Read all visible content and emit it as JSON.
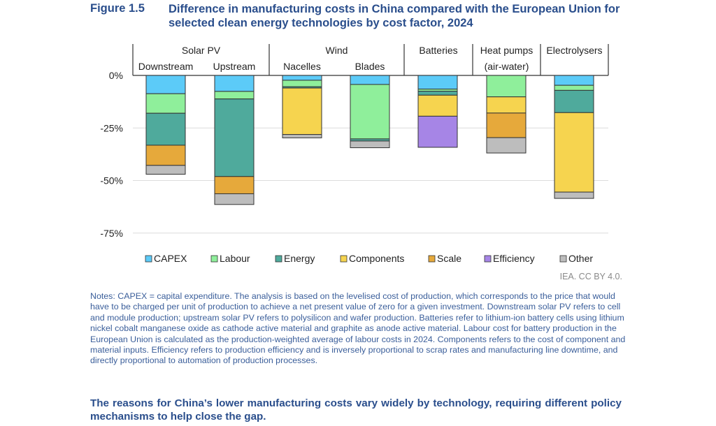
{
  "figure": {
    "label": "Figure 1.5",
    "title": "Difference in manufacturing costs in China compared with the European Union for selected clean energy technologies by cost factor, 2024"
  },
  "chart_data": {
    "type": "bar",
    "stacked": true,
    "title": "Difference in manufacturing costs in China compared with the European Union for selected clean energy technologies by cost factor, 2024",
    "xlabel": "",
    "ylabel": "",
    "ylim": [
      -75,
      0
    ],
    "yticks": [
      0,
      -25,
      -50,
      -75
    ],
    "ytick_labels": [
      "0%",
      "-25%",
      "-50%",
      "-75%"
    ],
    "grid": true,
    "legend_position": "bottom",
    "groups": [
      {
        "name": "Solar PV",
        "categories": [
          "Downstream",
          "Upstream"
        ]
      },
      {
        "name": "Wind",
        "categories": [
          "Nacelles",
          "Blades"
        ]
      },
      {
        "name": "Batteries",
        "categories": [
          ""
        ]
      },
      {
        "name": "Heat pumps (air-water)",
        "line1": "Heat pumps",
        "line2": "(air-water)",
        "categories": [
          ""
        ]
      },
      {
        "name": "Electrolysers",
        "categories": [
          ""
        ]
      }
    ],
    "categories": [
      "Solar PV Downstream",
      "Solar PV Upstream",
      "Wind Nacelles",
      "Wind Blades",
      "Batteries",
      "Heat pumps (air-water)",
      "Electrolysers"
    ],
    "series": [
      {
        "name": "CAPEX",
        "color": "#5ccbf8",
        "values": [
          -8.7,
          -7.6,
          -2.3,
          -4.3,
          -6.5,
          0,
          -4.7
        ]
      },
      {
        "name": "Labour",
        "color": "#8fef9b",
        "values": [
          -9.3,
          -3.6,
          -3.1,
          -25.9,
          -1.0,
          -10.2,
          -2.4
        ]
      },
      {
        "name": "Energy",
        "color": "#4faa9c",
        "values": [
          -15.2,
          -36.9,
          -0.6,
          -1.0,
          -1.9,
          0,
          -10.6
        ]
      },
      {
        "name": "Components",
        "color": "#f6d44f",
        "values": [
          0,
          0,
          -22.1,
          0,
          -10.0,
          -7.7,
          -37.8
        ]
      },
      {
        "name": "Scale",
        "color": "#e6a93b",
        "values": [
          -9.6,
          -8.2,
          0,
          0,
          0,
          -11.7,
          0
        ]
      },
      {
        "name": "Efficiency",
        "color": "#a685e6",
        "values": [
          0,
          0,
          0,
          0,
          -14.8,
          0,
          0
        ]
      },
      {
        "name": "Other",
        "color": "#bdbdbd",
        "values": [
          -4.2,
          -5.1,
          -1.6,
          -3.2,
          0,
          -7.3,
          -3.0
        ]
      }
    ]
  },
  "credit": "IEA. CC BY 4.0.",
  "notes": "Notes: CAPEX = capital expenditure. The analysis is based on the levelised cost of production, which corresponds to the price that would have to be charged per unit of production to achieve a net present value of zero for a given investment. Downstream solar PV refers to cell and module production; upstream solar PV refers to polysilicon and wafer production. Batteries refer to lithium-ion battery cells using lithium nickel cobalt manganese oxide as cathode active material and graphite as anode active material. Labour cost for battery production in the European Union is calculated as the production-weighted average of labour costs in 2024. Components refers to the cost of component and material inputs. Efficiency refers to production efficiency and is inversely proportional to scrap rates and manufacturing line downtime, and directly proportional to automation of production processes.",
  "takeaway": "The reasons for China’s lower manufacturing costs vary widely by technology, requiring different policy mechanisms to help close the gap."
}
